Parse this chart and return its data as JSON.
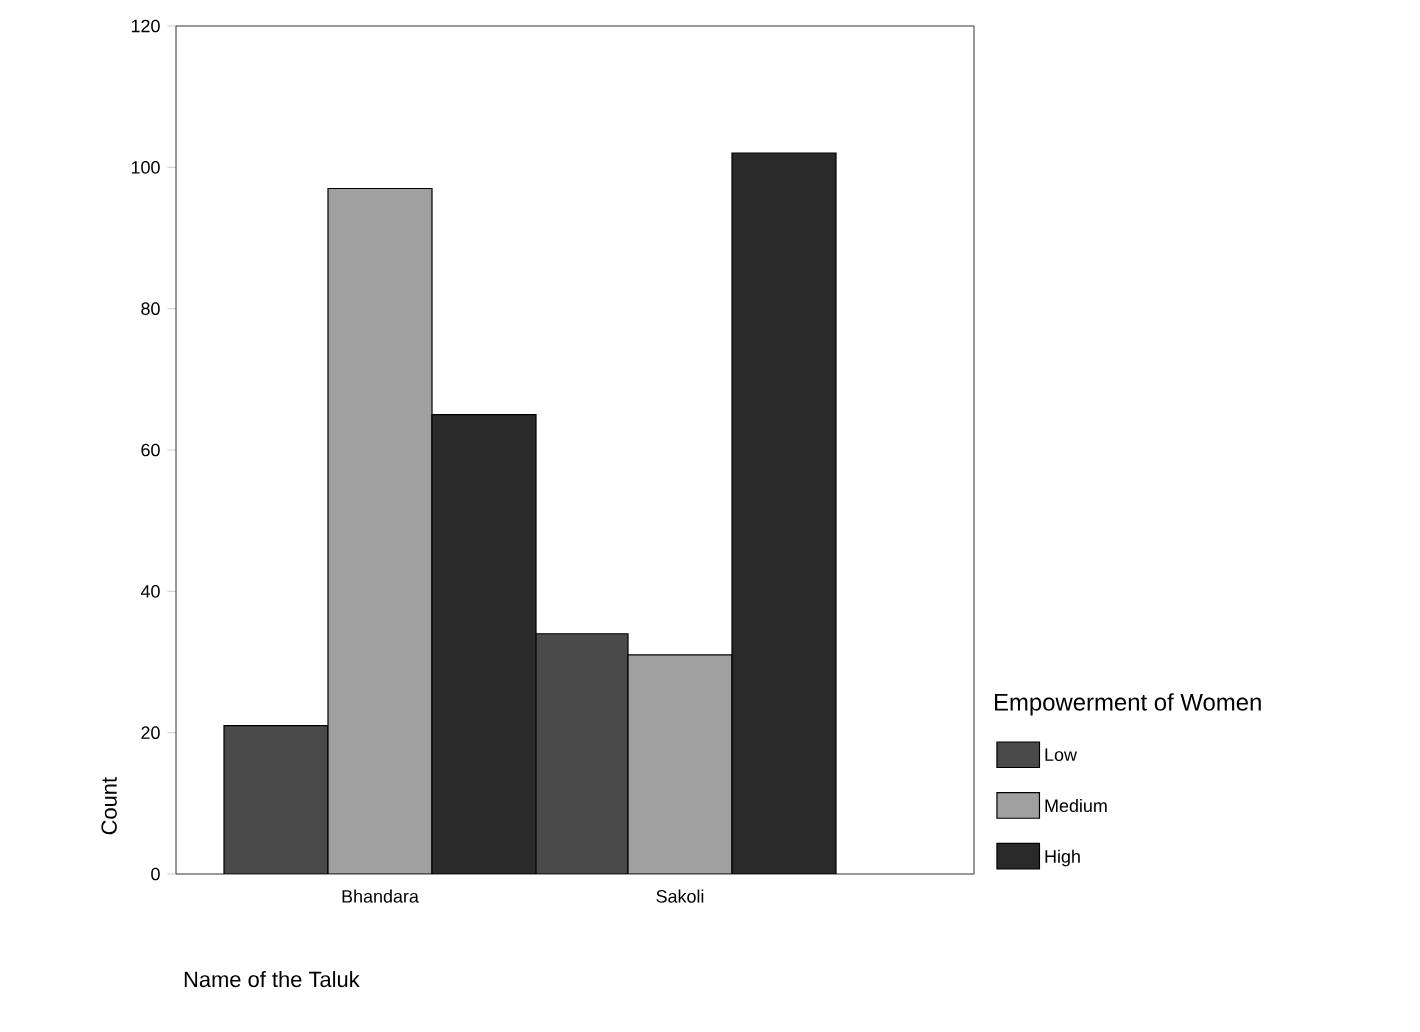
{
  "chart_data": {
    "type": "bar",
    "xlabel": "Name of the Taluk",
    "ylabel": "Count",
    "legend_title": "Empowerment of Women",
    "categories": [
      "Bhandara",
      "Sakoli"
    ],
    "series": [
      {
        "name": "Low",
        "color": "#4a4a4a",
        "values": [
          21,
          34
        ]
      },
      {
        "name": "Medium",
        "color": "#a0a0a0",
        "values": [
          97,
          31
        ]
      },
      {
        "name": "High",
        "color": "#2a2a2a",
        "values": [
          65,
          102
        ]
      }
    ],
    "ylim": [
      0,
      120
    ],
    "yticks": [
      0,
      20,
      40,
      60,
      80,
      100,
      120
    ],
    "grid": false,
    "legend": "right"
  }
}
